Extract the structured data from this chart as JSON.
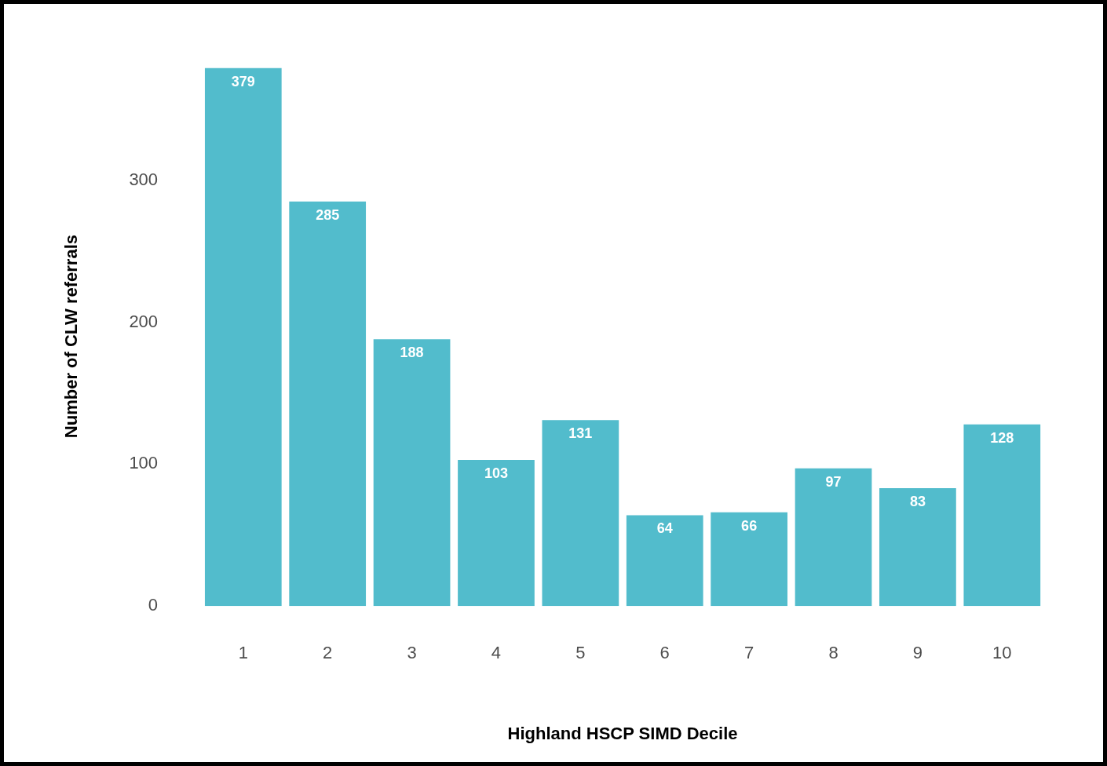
{
  "chart_data": {
    "type": "bar",
    "xlabel": "Highland HSCP SIMD Decile",
    "ylabel": "Number of CLW referrals",
    "categories": [
      "1",
      "2",
      "3",
      "4",
      "5",
      "6",
      "7",
      "8",
      "9",
      "10"
    ],
    "values": [
      379,
      285,
      188,
      103,
      131,
      64,
      66,
      97,
      83,
      128
    ],
    "color": "#52bccc",
    "ylim": [
      0,
      380
    ],
    "yticks": [
      0,
      100,
      200,
      300
    ],
    "grid": false,
    "legend": false,
    "data_labels": true
  }
}
